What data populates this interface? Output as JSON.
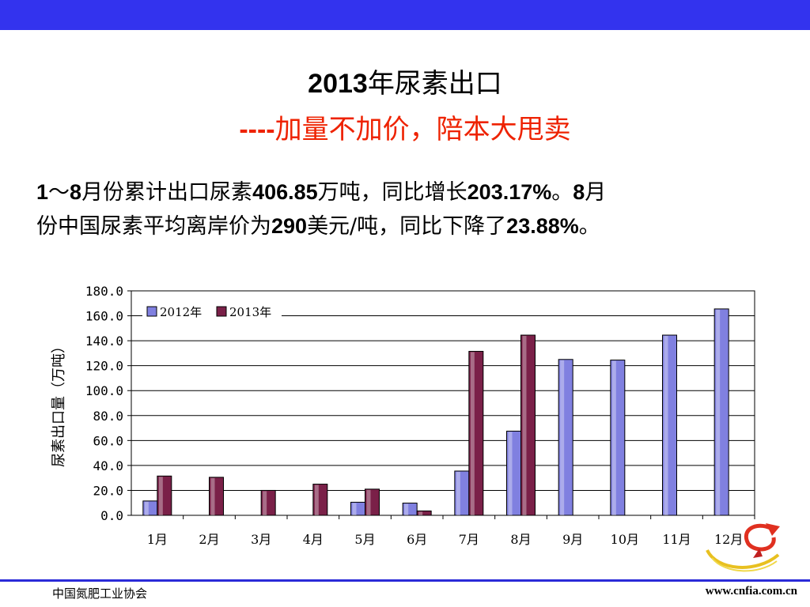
{
  "header": {
    "title_year": "2013",
    "title_text": "年尿素出口",
    "subtitle_dashes": "----",
    "subtitle_text": "加量不加价，陪本大甩卖"
  },
  "body": {
    "seg1": "1",
    "seg2": "～",
    "seg3": "8",
    "seg4": "月份累计出口尿素",
    "seg5": "406.85",
    "seg6": "万吨，同比增长",
    "seg7": "203.17%",
    "seg8": "。",
    "seg9": "8",
    "seg10": "月",
    "seg11": "份中国尿素平均离岸价为",
    "seg12": "290",
    "seg13": "美元/吨，同比下降了",
    "seg14": "23.88%",
    "seg15": "。"
  },
  "footer": {
    "left": "中国氮肥工业协会",
    "right": "www.cnfia.com.cn"
  },
  "chart_data": {
    "type": "bar",
    "categories": [
      "1月",
      "2月",
      "3月",
      "4月",
      "5月",
      "6月",
      "7月",
      "8月",
      "9月",
      "10月",
      "11月",
      "12月"
    ],
    "series": [
      {
        "name": "2012年",
        "values": [
          11.5,
          0,
          0,
          0,
          10.5,
          9.8,
          35.5,
          67.5,
          125.0,
          124.5,
          144.5,
          165.5
        ],
        "color": "#8080e0"
      },
      {
        "name": "2013年",
        "values": [
          31.5,
          30.5,
          20.0,
          25.0,
          21.0,
          3.5,
          131.5,
          144.5,
          null,
          null,
          null,
          null
        ],
        "color": "#7a2048"
      }
    ],
    "ylabel": "尿素出口量（万吨）",
    "ylim": [
      0,
      180
    ],
    "yticks": [
      "0.0",
      "20.0",
      "40.0",
      "60.0",
      "80.0",
      "100.0",
      "120.0",
      "140.0",
      "160.0",
      "180.0"
    ],
    "grid": true,
    "legend": "top-left"
  }
}
